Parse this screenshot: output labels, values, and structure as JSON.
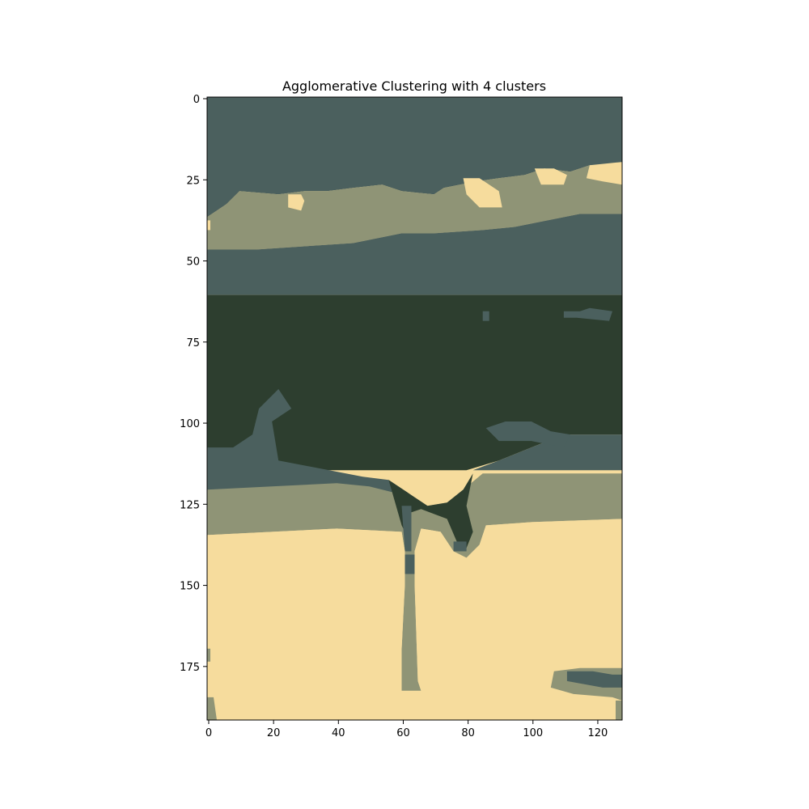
{
  "chart_data": {
    "type": "heatmap",
    "title": "Agglomerative Clustering with 4 clusters",
    "xlabel": "",
    "ylabel": "",
    "x_ticks": [
      0,
      20,
      40,
      60,
      80,
      100,
      120
    ],
    "y_ticks": [
      0,
      25,
      50,
      75,
      100,
      125,
      150,
      175
    ],
    "xlim": [
      -0.5,
      127.5
    ],
    "ylim": [
      191.5,
      -0.5
    ],
    "grid": false,
    "legend": "none",
    "clusters": [
      {
        "id": 0,
        "color": "#4b605e"
      },
      {
        "id": 1,
        "color": "#2d3e2f"
      },
      {
        "id": 2,
        "color": "#8f9476"
      },
      {
        "id": 3,
        "color": "#f6dc9d"
      }
    ],
    "regions": [
      {
        "cluster": 0,
        "poly": [
          [
            0,
            0
          ],
          [
            128,
            0
          ],
          [
            128,
            21
          ],
          [
            118,
            21
          ],
          [
            112,
            23
          ],
          [
            104,
            22
          ],
          [
            98,
            24
          ],
          [
            90,
            25
          ],
          [
            83,
            26
          ],
          [
            73,
            28
          ],
          [
            70,
            30
          ],
          [
            60,
            29
          ],
          [
            54,
            27
          ],
          [
            45,
            28
          ],
          [
            37,
            29
          ],
          [
            30,
            29
          ],
          [
            22,
            30
          ],
          [
            10,
            29
          ],
          [
            6,
            33
          ],
          [
            0,
            37
          ]
        ]
      },
      {
        "cluster": 2,
        "poly": [
          [
            0,
            37
          ],
          [
            6,
            33
          ],
          [
            10,
            29
          ],
          [
            22,
            30
          ],
          [
            30,
            29
          ],
          [
            37,
            29
          ],
          [
            45,
            28
          ],
          [
            54,
            27
          ],
          [
            60,
            29
          ],
          [
            70,
            30
          ],
          [
            73,
            28
          ],
          [
            83,
            26
          ],
          [
            90,
            25
          ],
          [
            98,
            24
          ],
          [
            104,
            22
          ],
          [
            112,
            23
          ],
          [
            118,
            21
          ],
          [
            128,
            21
          ],
          [
            128,
            36
          ],
          [
            115,
            36
          ],
          [
            105,
            38
          ],
          [
            95,
            40
          ],
          [
            85,
            41
          ],
          [
            70,
            42
          ],
          [
            60,
            42
          ],
          [
            45,
            45
          ],
          [
            30,
            46
          ],
          [
            15,
            47
          ],
          [
            0,
            47
          ]
        ]
      },
      {
        "cluster": 3,
        "poly": [
          [
            25,
            30
          ],
          [
            29,
            30
          ],
          [
            30,
            32
          ],
          [
            29,
            35
          ],
          [
            25,
            34
          ]
        ]
      },
      {
        "cluster": 3,
        "poly": [
          [
            79,
            25
          ],
          [
            84,
            25
          ],
          [
            90,
            29
          ],
          [
            91,
            34
          ],
          [
            84,
            34
          ],
          [
            80,
            30
          ]
        ]
      },
      {
        "cluster": 3,
        "poly": [
          [
            101,
            22
          ],
          [
            107,
            22
          ],
          [
            111,
            24
          ],
          [
            110,
            27
          ],
          [
            103,
            27
          ]
        ]
      },
      {
        "cluster": 3,
        "poly": [
          [
            118,
            21
          ],
          [
            128,
            20
          ],
          [
            128,
            27
          ],
          [
            122,
            26
          ],
          [
            117,
            25
          ]
        ]
      },
      {
        "cluster": 3,
        "poly": [
          [
            0,
            38
          ],
          [
            1,
            38
          ],
          [
            1,
            41
          ],
          [
            0,
            41
          ]
        ]
      },
      {
        "cluster": 0,
        "poly": [
          [
            0,
            47
          ],
          [
            15,
            47
          ],
          [
            30,
            46
          ],
          [
            45,
            45
          ],
          [
            60,
            42
          ],
          [
            70,
            42
          ],
          [
            85,
            41
          ],
          [
            95,
            40
          ],
          [
            105,
            38
          ],
          [
            115,
            36
          ],
          [
            128,
            36
          ],
          [
            128,
            61
          ],
          [
            0,
            61
          ]
        ]
      },
      {
        "cluster": 1,
        "poly": [
          [
            0,
            61
          ],
          [
            128,
            61
          ],
          [
            128,
            104
          ],
          [
            110,
            104
          ],
          [
            100,
            108
          ],
          [
            90,
            112
          ],
          [
            80,
            115
          ],
          [
            0,
            115
          ]
        ]
      },
      {
        "cluster": 0,
        "poly": [
          [
            0,
            108
          ],
          [
            8,
            108
          ],
          [
            14,
            104
          ],
          [
            16,
            96
          ],
          [
            22,
            90
          ],
          [
            26,
            96
          ],
          [
            20,
            100
          ],
          [
            22,
            112
          ],
          [
            48,
            117
          ],
          [
            56,
            118
          ],
          [
            62,
            122
          ],
          [
            61,
            126
          ],
          [
            0,
            127
          ]
        ]
      },
      {
        "cluster": 0,
        "poly": [
          [
            128,
            104
          ],
          [
            110,
            104
          ],
          [
            100,
            108
          ],
          [
            90,
            112
          ],
          [
            82,
            115
          ],
          [
            128,
            115
          ]
        ]
      },
      {
        "cluster": 0,
        "poly": [
          [
            86,
            102
          ],
          [
            92,
            100
          ],
          [
            100,
            100
          ],
          [
            106,
            103
          ],
          [
            112,
            104
          ],
          [
            110,
            108
          ],
          [
            100,
            106
          ],
          [
            90,
            106
          ]
        ]
      },
      {
        "cluster": 0,
        "poly": [
          [
            110,
            66
          ],
          [
            115,
            66
          ],
          [
            118,
            65
          ],
          [
            125,
            66
          ],
          [
            124,
            69
          ],
          [
            114,
            68
          ],
          [
            110,
            68
          ]
        ]
      },
      {
        "cluster": 0,
        "poly": [
          [
            85,
            66
          ],
          [
            87,
            66
          ],
          [
            87,
            69
          ],
          [
            85,
            69
          ]
        ]
      },
      {
        "cluster": 2,
        "poly": [
          [
            0,
            121
          ],
          [
            20,
            120
          ],
          [
            40,
            119
          ],
          [
            50,
            120
          ],
          [
            58,
            122
          ],
          [
            62,
            126
          ],
          [
            68,
            126
          ],
          [
            74,
            125
          ],
          [
            79,
            121
          ],
          [
            85,
            116
          ],
          [
            128,
            116
          ],
          [
            128,
            130
          ],
          [
            100,
            131
          ],
          [
            86,
            132
          ],
          [
            84,
            138
          ],
          [
            80,
            142
          ],
          [
            76,
            140
          ],
          [
            72,
            134
          ],
          [
            66,
            133
          ],
          [
            64,
            140
          ],
          [
            64,
            150
          ],
          [
            65,
            180
          ],
          [
            66,
            183
          ],
          [
            60,
            183
          ],
          [
            60,
            170
          ],
          [
            61,
            150
          ],
          [
            61,
            140
          ],
          [
            60,
            134
          ],
          [
            40,
            133
          ],
          [
            20,
            134
          ],
          [
            0,
            135
          ]
        ]
      },
      {
        "cluster": 1,
        "poly": [
          [
            56,
            118
          ],
          [
            62,
            122
          ],
          [
            68,
            126
          ],
          [
            74,
            125
          ],
          [
            79,
            121
          ],
          [
            82,
            116
          ],
          [
            80,
            126
          ],
          [
            82,
            134
          ],
          [
            80,
            139
          ],
          [
            77,
            137
          ],
          [
            74,
            130
          ],
          [
            66,
            127
          ],
          [
            63,
            128
          ],
          [
            62,
            136
          ],
          [
            60,
            132
          ]
        ]
      },
      {
        "cluster": 0,
        "poly": [
          [
            60,
            126
          ],
          [
            63,
            126
          ],
          [
            63,
            140
          ],
          [
            61,
            140
          ]
        ]
      },
      {
        "cluster": 0,
        "poly": [
          [
            61,
            141
          ],
          [
            64,
            141
          ],
          [
            64,
            147
          ],
          [
            61,
            147
          ]
        ]
      },
      {
        "cluster": 0,
        "poly": [
          [
            76,
            137
          ],
          [
            80,
            137
          ],
          [
            80,
            140
          ],
          [
            76,
            140
          ]
        ]
      },
      {
        "cluster": 3,
        "poly": [
          [
            0,
            135
          ],
          [
            20,
            134
          ],
          [
            40,
            133
          ],
          [
            60,
            134
          ],
          [
            61,
            140
          ],
          [
            61,
            150
          ],
          [
            60,
            170
          ],
          [
            60,
            183
          ],
          [
            66,
            183
          ],
          [
            65,
            180
          ],
          [
            64,
            150
          ],
          [
            64,
            140
          ],
          [
            66,
            133
          ],
          [
            72,
            134
          ],
          [
            76,
            140
          ],
          [
            80,
            142
          ],
          [
            84,
            138
          ],
          [
            86,
            132
          ],
          [
            100,
            131
          ],
          [
            128,
            130
          ],
          [
            128,
            176
          ],
          [
            115,
            176
          ],
          [
            107,
            177
          ],
          [
            106,
            182
          ],
          [
            113,
            184
          ],
          [
            125,
            185
          ],
          [
            128,
            186
          ],
          [
            128,
            192
          ],
          [
            0,
            192
          ]
        ]
      },
      {
        "cluster": 2,
        "poly": [
          [
            107,
            177
          ],
          [
            115,
            176
          ],
          [
            128,
            176
          ],
          [
            128,
            186
          ],
          [
            125,
            185
          ],
          [
            113,
            184
          ],
          [
            106,
            182
          ]
        ]
      },
      {
        "cluster": 0,
        "poly": [
          [
            111,
            177
          ],
          [
            119,
            177
          ],
          [
            125,
            178
          ],
          [
            128,
            178
          ],
          [
            128,
            182
          ],
          [
            122,
            182
          ],
          [
            111,
            180
          ]
        ]
      },
      {
        "cluster": 2,
        "poly": [
          [
            0,
            170
          ],
          [
            1,
            170
          ],
          [
            1,
            174
          ],
          [
            0,
            174
          ]
        ]
      },
      {
        "cluster": 2,
        "poly": [
          [
            0,
            185
          ],
          [
            2,
            185
          ],
          [
            3,
            192
          ],
          [
            0,
            192
          ]
        ]
      },
      {
        "cluster": 2,
        "poly": [
          [
            126,
            186
          ],
          [
            128,
            186
          ],
          [
            128,
            192
          ],
          [
            126,
            192
          ]
        ]
      }
    ]
  }
}
